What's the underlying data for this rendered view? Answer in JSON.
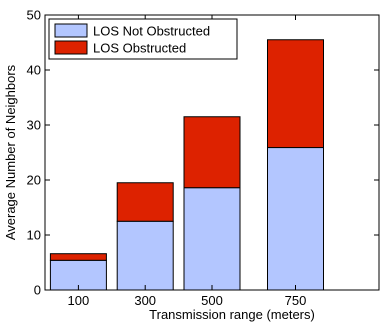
{
  "chart_data": {
    "type": "bar",
    "stacked": true,
    "categories": [
      "100",
      "300",
      "500",
      "750"
    ],
    "x": [
      100,
      300,
      500,
      750
    ],
    "xlim": [
      0,
      1000
    ],
    "ylim": [
      0,
      50
    ],
    "yticks": [
      0,
      10,
      20,
      30,
      40,
      50
    ],
    "xlabel": "Transmission range (meters)",
    "ylabel": "Average Number of Neighbors",
    "legend_position": "top-left",
    "series": [
      {
        "name": "LOS Not Obstructed",
        "color": "#b3c6ff",
        "values": [
          5.4,
          12.5,
          18.6,
          25.9
        ]
      },
      {
        "name": "LOS Obstructed",
        "color": "#dd2200",
        "values": [
          1.2,
          7.0,
          12.9,
          19.6
        ]
      }
    ]
  }
}
